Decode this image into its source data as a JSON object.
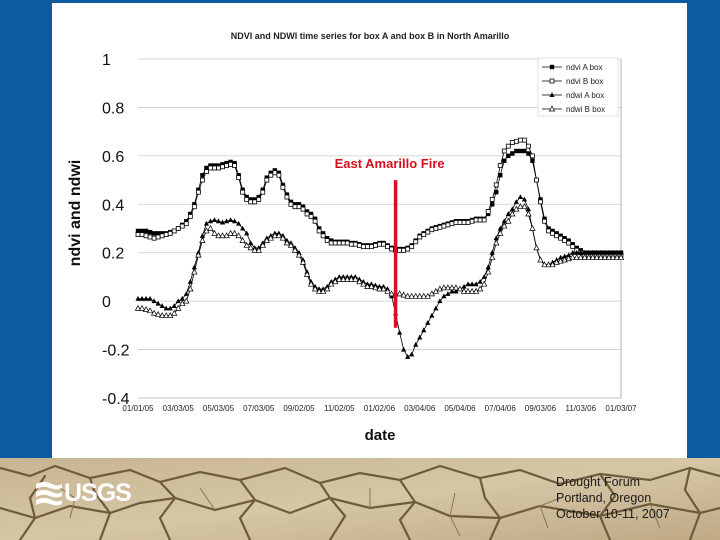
{
  "colors": {
    "slide_bg": "#0d5aa0",
    "panel_bg": "#ffffff",
    "annotation": "#d90f1f",
    "series": "#000000"
  },
  "logo": {
    "text": "USGS",
    "icon": "usgs-wave-icon"
  },
  "footer": {
    "line1": "Drought Forum",
    "line2": "Portland, Oregon",
    "line3": "October 10-11, 2007"
  },
  "chart_data": {
    "type": "line",
    "title": "NDVI and NDWI time series for box A and box B in North Amarillo",
    "xlabel": "date",
    "ylabel": "ndvi and ndwi",
    "ylim": [
      -0.4,
      1
    ],
    "yticks": [
      -0.4,
      -0.2,
      0,
      0.2,
      0.4,
      0.6,
      0.8,
      1
    ],
    "ytick_labels": [
      "-0.4",
      "-0.2",
      "0",
      "0.2",
      "0.4",
      "0.6",
      "0.8",
      "1"
    ],
    "grid": true,
    "legend_position": "top-right",
    "x_tick_labels": [
      "01/01/05",
      "03/03/05",
      "05/03/05",
      "07/03/05",
      "09/02/05",
      "11/02/05",
      "01/02/06",
      "03/04/06",
      "05/04/06",
      "07/04/06",
      "09/03/06",
      "11/03/06",
      "01/03/07"
    ],
    "x": [
      0,
      1,
      2,
      3,
      4,
      5,
      6,
      7,
      8,
      9,
      10,
      11,
      12,
      13,
      14,
      15,
      16,
      17,
      18,
      19,
      20,
      21,
      22,
      23,
      24,
      25,
      26,
      27,
      28,
      29,
      30,
      31,
      32,
      33,
      34,
      35,
      36,
      37,
      38,
      39,
      40,
      41,
      42,
      43,
      44,
      45,
      46,
      47,
      48,
      49,
      50,
      51,
      52,
      53,
      54,
      55,
      56,
      57,
      58,
      59,
      60,
      61,
      62,
      63,
      64,
      65,
      66,
      67,
      68,
      69,
      70,
      71,
      72,
      73,
      74,
      75,
      76,
      77,
      78,
      79,
      80,
      81,
      82,
      83,
      84,
      85,
      86,
      87,
      88,
      89,
      90,
      91,
      92,
      93,
      94,
      95,
      96,
      97,
      98,
      99,
      100,
      101,
      102,
      103,
      104,
      105,
      106,
      107,
      108,
      109,
      110,
      111,
      112,
      113,
      114,
      115,
      116,
      117,
      118,
      119,
      120
    ],
    "series": [
      {
        "name": "ndvi A box",
        "marker": "filled-square",
        "values": [
          0.29,
          0.29,
          0.29,
          0.285,
          0.28,
          0.28,
          0.28,
          0.28,
          0.285,
          0.29,
          0.3,
          0.315,
          0.33,
          0.36,
          0.4,
          0.46,
          0.52,
          0.55,
          0.56,
          0.56,
          0.56,
          0.565,
          0.57,
          0.575,
          0.57,
          0.52,
          0.46,
          0.43,
          0.42,
          0.42,
          0.43,
          0.46,
          0.51,
          0.53,
          0.54,
          0.53,
          0.48,
          0.44,
          0.41,
          0.4,
          0.4,
          0.39,
          0.37,
          0.36,
          0.34,
          0.3,
          0.28,
          0.26,
          0.25,
          0.245,
          0.245,
          0.245,
          0.245,
          0.24,
          0.24,
          0.235,
          0.23,
          0.23,
          0.23,
          0.235,
          0.24,
          0.24,
          0.23,
          0.22,
          0.215,
          0.215,
          0.215,
          0.22,
          0.23,
          0.25,
          0.27,
          0.28,
          0.29,
          0.3,
          0.305,
          0.31,
          0.315,
          0.32,
          0.325,
          0.33,
          0.33,
          0.33,
          0.33,
          0.335,
          0.34,
          0.34,
          0.34,
          0.36,
          0.4,
          0.45,
          0.52,
          0.58,
          0.6,
          0.61,
          0.62,
          0.62,
          0.62,
          0.61,
          0.58,
          0.5,
          0.42,
          0.34,
          0.3,
          0.29,
          0.28,
          0.27,
          0.26,
          0.25,
          0.235,
          0.22,
          0.21,
          0.2,
          0.2,
          0.2,
          0.2,
          0.2,
          0.2,
          0.2,
          0.2,
          0.2,
          0.2
        ]
      },
      {
        "name": "ndvi B box",
        "marker": "open-square",
        "values": [
          0.275,
          0.275,
          0.27,
          0.265,
          0.26,
          0.265,
          0.27,
          0.275,
          0.28,
          0.29,
          0.3,
          0.31,
          0.32,
          0.35,
          0.39,
          0.45,
          0.5,
          0.535,
          0.55,
          0.55,
          0.55,
          0.555,
          0.56,
          0.565,
          0.56,
          0.51,
          0.45,
          0.42,
          0.41,
          0.41,
          0.42,
          0.45,
          0.5,
          0.52,
          0.53,
          0.52,
          0.47,
          0.43,
          0.4,
          0.39,
          0.39,
          0.38,
          0.36,
          0.35,
          0.33,
          0.29,
          0.27,
          0.25,
          0.24,
          0.24,
          0.24,
          0.24,
          0.24,
          0.235,
          0.235,
          0.23,
          0.225,
          0.225,
          0.225,
          0.23,
          0.235,
          0.235,
          0.225,
          0.215,
          0.21,
          0.21,
          0.21,
          0.215,
          0.225,
          0.245,
          0.265,
          0.275,
          0.285,
          0.295,
          0.3,
          0.305,
          0.31,
          0.315,
          0.32,
          0.325,
          0.325,
          0.325,
          0.325,
          0.33,
          0.335,
          0.335,
          0.335,
          0.37,
          0.42,
          0.48,
          0.56,
          0.62,
          0.64,
          0.655,
          0.66,
          0.665,
          0.665,
          0.64,
          0.6,
          0.5,
          0.41,
          0.33,
          0.29,
          0.28,
          0.27,
          0.26,
          0.25,
          0.24,
          0.225,
          0.21,
          0.2,
          0.19,
          0.19,
          0.19,
          0.19,
          0.19,
          0.19,
          0.19,
          0.19,
          0.19,
          0.19
        ]
      },
      {
        "name": "ndwi A box",
        "marker": "filled-triangle",
        "values": [
          0.01,
          0.01,
          0.01,
          0.01,
          0.0,
          -0.01,
          -0.02,
          -0.03,
          -0.03,
          -0.02,
          0.0,
          0.01,
          0.03,
          0.08,
          0.14,
          0.2,
          0.27,
          0.32,
          0.33,
          0.335,
          0.33,
          0.325,
          0.33,
          0.335,
          0.33,
          0.32,
          0.3,
          0.28,
          0.24,
          0.22,
          0.22,
          0.24,
          0.26,
          0.27,
          0.28,
          0.28,
          0.27,
          0.25,
          0.24,
          0.22,
          0.2,
          0.17,
          0.12,
          0.08,
          0.06,
          0.05,
          0.05,
          0.06,
          0.08,
          0.09,
          0.1,
          0.1,
          0.1,
          0.1,
          0.1,
          0.09,
          0.08,
          0.07,
          0.07,
          0.065,
          0.06,
          0.06,
          0.05,
          0.02,
          -0.05,
          -0.13,
          -0.2,
          -0.23,
          -0.22,
          -0.18,
          -0.15,
          -0.12,
          -0.09,
          -0.06,
          -0.03,
          0.0,
          0.02,
          0.03,
          0.04,
          0.04,
          0.05,
          0.06,
          0.07,
          0.07,
          0.07,
          0.08,
          0.1,
          0.14,
          0.2,
          0.26,
          0.3,
          0.33,
          0.36,
          0.38,
          0.41,
          0.43,
          0.42,
          0.38,
          0.3,
          0.22,
          0.17,
          0.15,
          0.15,
          0.16,
          0.17,
          0.18,
          0.185,
          0.19,
          0.2,
          0.2,
          0.2,
          0.2,
          0.2,
          0.2,
          0.2,
          0.2,
          0.2,
          0.2,
          0.2,
          0.2,
          0.2
        ]
      },
      {
        "name": "ndwi B box",
        "marker": "open-triangle",
        "values": [
          -0.03,
          -0.03,
          -0.035,
          -0.04,
          -0.05,
          -0.055,
          -0.06,
          -0.06,
          -0.06,
          -0.05,
          -0.03,
          -0.01,
          0.0,
          0.05,
          0.12,
          0.19,
          0.25,
          0.29,
          0.3,
          0.28,
          0.27,
          0.27,
          0.27,
          0.28,
          0.28,
          0.27,
          0.25,
          0.23,
          0.22,
          0.21,
          0.21,
          0.23,
          0.25,
          0.26,
          0.27,
          0.27,
          0.26,
          0.24,
          0.23,
          0.21,
          0.19,
          0.16,
          0.11,
          0.07,
          0.05,
          0.04,
          0.04,
          0.05,
          0.07,
          0.08,
          0.09,
          0.09,
          0.09,
          0.09,
          0.09,
          0.08,
          0.07,
          0.06,
          0.06,
          0.055,
          0.05,
          0.05,
          0.04,
          0.03,
          0.03,
          0.03,
          0.025,
          0.02,
          0.02,
          0.02,
          0.02,
          0.02,
          0.02,
          0.03,
          0.04,
          0.05,
          0.055,
          0.055,
          0.055,
          0.055,
          0.05,
          0.04,
          0.04,
          0.04,
          0.04,
          0.05,
          0.07,
          0.12,
          0.18,
          0.24,
          0.28,
          0.31,
          0.33,
          0.36,
          0.38,
          0.39,
          0.39,
          0.36,
          0.3,
          0.22,
          0.17,
          0.15,
          0.15,
          0.15,
          0.16,
          0.165,
          0.17,
          0.175,
          0.18,
          0.18,
          0.18,
          0.18,
          0.18,
          0.18,
          0.18,
          0.18,
          0.18,
          0.18,
          0.18,
          0.18,
          0.18
        ]
      }
    ],
    "annotations": [
      {
        "text": "East Amarillo Fire",
        "x": 64,
        "y_range": [
          -0.11,
          0.5
        ]
      }
    ]
  }
}
